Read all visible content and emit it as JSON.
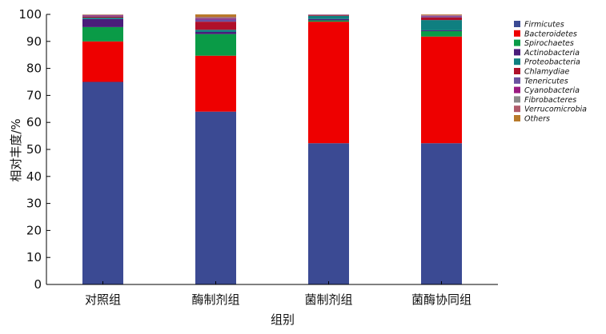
{
  "chart_data": {
    "type": "bar",
    "stacked": true,
    "title": "",
    "xlabel": "组别",
    "ylabel": "相对丰度/%",
    "ylim": [
      0,
      100
    ],
    "yticks": [
      0,
      10,
      20,
      30,
      40,
      50,
      60,
      70,
      80,
      90,
      100
    ],
    "grid": false,
    "legend_position": "right",
    "categories": [
      "对照组",
      "酶制剂组",
      "菌制剂组",
      "菌酶协同组"
    ],
    "series": [
      {
        "name": "Firmicutes",
        "color": "#3b4a93",
        "values": [
          75.0,
          64.0,
          52.3,
          52.3
        ]
      },
      {
        "name": "Bacteroidetes",
        "color": "#ee0000",
        "values": [
          15.0,
          20.7,
          45.0,
          39.5
        ]
      },
      {
        "name": "Spirochaetes",
        "color": "#0a9b47",
        "values": [
          5.3,
          8.0,
          0.5,
          2.0
        ]
      },
      {
        "name": "Actinobacteria",
        "color": "#4a1d7a",
        "values": [
          3.0,
          0.8,
          0.5,
          0.3
        ]
      },
      {
        "name": "Proteobacteria",
        "color": "#0f7f80",
        "values": [
          0.5,
          0.8,
          1.2,
          3.8
        ]
      },
      {
        "name": "Chlamydiae",
        "color": "#b0102a",
        "values": [
          0.4,
          3.0,
          0.3,
          1.0
        ]
      },
      {
        "name": "Tenericutes",
        "color": "#6a52a0",
        "values": [
          0.3,
          0.8,
          0.1,
          0.4
        ]
      },
      {
        "name": "Cyanobacteria",
        "color": "#9b1a80",
        "values": [
          0.2,
          0.4,
          0.05,
          0.2
        ]
      },
      {
        "name": "Fibrobacteres",
        "color": "#8a8a8a",
        "values": [
          0.1,
          0.3,
          0.02,
          0.1
        ]
      },
      {
        "name": "Verrucomicrobia",
        "color": "#b05a6a",
        "values": [
          0.1,
          0.3,
          0.02,
          0.2
        ]
      },
      {
        "name": "Others",
        "color": "#b87a2a",
        "values": [
          0.1,
          0.9,
          0.01,
          0.2
        ]
      }
    ]
  }
}
